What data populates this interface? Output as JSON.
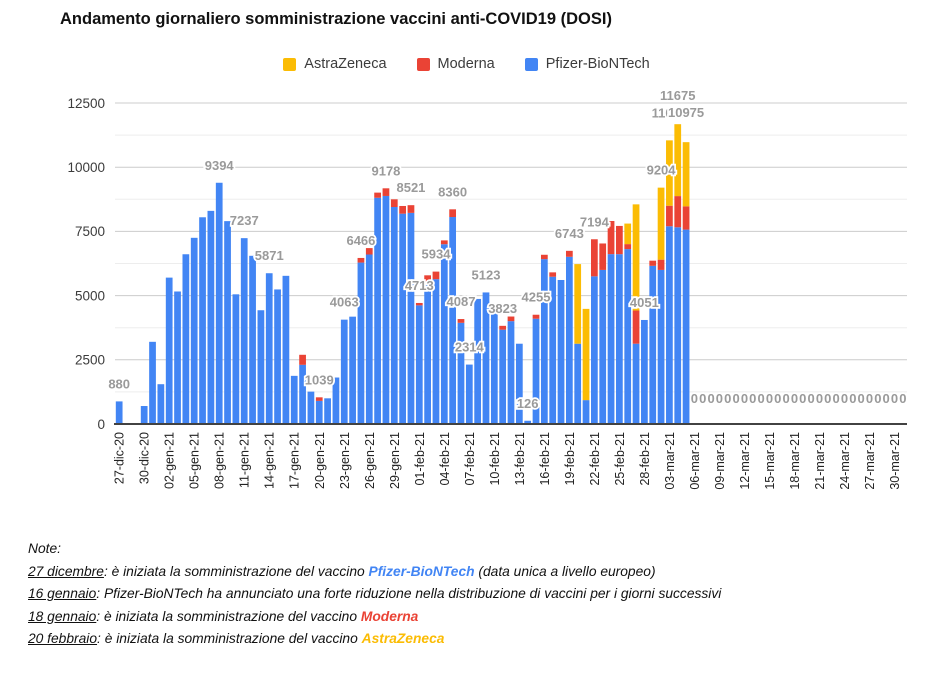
{
  "title": "Andamento giornaliero somministrazione vaccini anti-COVID19 (DOSI)",
  "legend": {
    "items": [
      {
        "label": "AstraZeneca",
        "color": "#fbbc04"
      },
      {
        "label": "Moderna",
        "color": "#ea4335"
      },
      {
        "label": "Pfizer-BioNTech",
        "color": "#4285f4"
      }
    ]
  },
  "chart_data": {
    "type": "bar",
    "stacked": true,
    "title": "Andamento giornaliero somministrazione vaccini anti-COVID19 (DOSI)",
    "xlabel": "",
    "ylabel": "",
    "ylim": [
      0,
      12500
    ],
    "yticks": [
      0,
      2500,
      5000,
      7500,
      10000,
      12500
    ],
    "minor_gridlines": [
      1250,
      3750,
      6250,
      8750,
      11250
    ],
    "grid": "on",
    "legend_position": "top",
    "x_tick_every_days": 3,
    "series_colors": {
      "pfizer": "#4285f4",
      "moderna": "#ea4335",
      "astrazeneca": "#fbbc04"
    },
    "series_names": {
      "p": "Pfizer-BioNTech",
      "m": "Moderna",
      "a": "AstraZeneca"
    },
    "annotation_note": "gray value labels with white halo; overlapping labels partially hidden",
    "days": [
      {
        "d": "27-dic-20",
        "p": 880,
        "l": "880"
      },
      {
        "d": "28-dic-20"
      },
      {
        "d": "29-dic-20"
      },
      {
        "d": "30-dic-20",
        "p": 700
      },
      {
        "d": "31-dic-20",
        "p": 3200
      },
      {
        "d": "01-gen-21",
        "p": 1550
      },
      {
        "d": "02-gen-21",
        "p": 5700
      },
      {
        "d": "03-gen-21",
        "p": 5160
      },
      {
        "d": "04-gen-21",
        "p": 6610
      },
      {
        "d": "05-gen-21",
        "p": 7250
      },
      {
        "d": "06-gen-21",
        "p": 8050
      },
      {
        "d": "07-gen-21",
        "p": 8300
      },
      {
        "d": "08-gen-21",
        "p": 9394,
        "l": "9394"
      },
      {
        "d": "09-gen-21",
        "p": 7900
      },
      {
        "d": "10-gen-21",
        "p": 5050
      },
      {
        "d": "11-gen-21",
        "p": 7237,
        "l": "7237"
      },
      {
        "d": "12-gen-21",
        "p": 6550
      },
      {
        "d": "13-gen-21",
        "p": 4430
      },
      {
        "d": "14-gen-21",
        "p": 5871,
        "l": "5871"
      },
      {
        "d": "15-gen-21",
        "p": 5240
      },
      {
        "d": "16-gen-21",
        "p": 5770
      },
      {
        "d": "17-gen-21",
        "p": 1875
      },
      {
        "d": "18-gen-21",
        "p": 2305,
        "m": 390
      },
      {
        "d": "19-gen-21",
        "p": 1260
      },
      {
        "d": "20-gen-21",
        "p": 900,
        "m": 139,
        "l": "1039"
      },
      {
        "d": "21-gen-21",
        "p": 1000
      },
      {
        "d": "22-gen-21",
        "p": 1810
      },
      {
        "d": "23-gen-21",
        "p": 4063,
        "l": "4063"
      },
      {
        "d": "24-gen-21",
        "p": 4180
      },
      {
        "d": "25-gen-21",
        "p": 6286,
        "m": 180,
        "l": "6466"
      },
      {
        "d": "26-gen-21",
        "p": 6600,
        "m": 250
      },
      {
        "d": "27-gen-21",
        "p": 8810,
        "m": 200
      },
      {
        "d": "28-gen-21",
        "p": 8880,
        "m": 298,
        "l": "9178"
      },
      {
        "d": "29-gen-21",
        "p": 8450,
        "m": 300
      },
      {
        "d": "30-gen-21",
        "p": 8190,
        "m": 300
      },
      {
        "d": "31-gen-21",
        "p": 8221,
        "m": 300,
        "l": "8521"
      },
      {
        "d": "01-feb-21",
        "p": 4620,
        "m": 93,
        "l": "4713"
      },
      {
        "d": "02-feb-21",
        "p": 5530,
        "m": 260
      },
      {
        "d": "03-feb-21",
        "p": 5640,
        "m": 294,
        "l": "5934"
      },
      {
        "d": "04-feb-21",
        "p": 7000,
        "m": 150
      },
      {
        "d": "05-feb-21",
        "p": 8060,
        "m": 300,
        "l": "8360"
      },
      {
        "d": "06-feb-21",
        "p": 3940,
        "m": 147,
        "l": "4087"
      },
      {
        "d": "07-feb-21",
        "p": 2314,
        "l": "2314"
      },
      {
        "d": "08-feb-21",
        "p": 4870
      },
      {
        "d": "09-feb-21",
        "p": 5123,
        "l": "5123"
      },
      {
        "d": "10-feb-21",
        "p": 4340,
        "m": 182
      },
      {
        "d": "11-feb-21",
        "p": 3673,
        "m": 150,
        "l": "3823"
      },
      {
        "d": "12-feb-21",
        "p": 4005,
        "m": 180
      },
      {
        "d": "13-feb-21",
        "p": 3126
      },
      {
        "d": "14-feb-21",
        "p": 126,
        "l": "126"
      },
      {
        "d": "15-feb-21",
        "p": 4100,
        "m": 155,
        "l": "4255"
      },
      {
        "d": "16-feb-21",
        "p": 6420,
        "m": 170
      },
      {
        "d": "17-feb-21",
        "p": 5735,
        "m": 170
      },
      {
        "d": "18-feb-21",
        "p": 5608
      },
      {
        "d": "19-feb-21",
        "p": 6511,
        "m": 232,
        "l": "6743"
      },
      {
        "d": "20-feb-21",
        "p": 3127,
        "a": 3100
      },
      {
        "d": "21-feb-21",
        "p": 930,
        "a": 3553
      },
      {
        "d": "22-feb-21",
        "p": 5750,
        "m": 1444,
        "l": "7194"
      },
      {
        "d": "23-feb-21",
        "p": 6000,
        "m": 1030
      },
      {
        "d": "24-feb-21",
        "p": 6615,
        "m": 1290
      },
      {
        "d": "25-feb-21",
        "p": 6613,
        "m": 1100
      },
      {
        "d": "26-feb-21",
        "p": 6810,
        "m": 195,
        "a": 800
      },
      {
        "d": "27-feb-21",
        "p": 3127,
        "m": 1292,
        "a": 4134
      },
      {
        "d": "28-feb-21",
        "p": 4051,
        "l": "4051"
      },
      {
        "d": "01-mar-21",
        "p": 6160,
        "m": 200
      },
      {
        "d": "02-mar-21",
        "p": 6000,
        "m": 400,
        "a": 2804,
        "l": "9204"
      },
      {
        "d": "03-mar-21",
        "p": 7700,
        "m": 800,
        "a": 2545,
        "l": "11045",
        "dy": -10
      },
      {
        "d": "04-mar-21",
        "p": 7660,
        "m": 1215,
        "a": 2800,
        "l": "11675",
        "dy": -11
      },
      {
        "d": "05-mar-21",
        "p": 7570,
        "m": 905,
        "a": 2500,
        "l": "10975",
        "dy": -12
      },
      {
        "d": "06-mar-21",
        "l": "0"
      },
      {
        "d": "07-mar-21",
        "l": "0"
      },
      {
        "d": "08-mar-21",
        "l": "0"
      },
      {
        "d": "09-mar-21",
        "l": "0"
      },
      {
        "d": "10-mar-21",
        "l": "0"
      },
      {
        "d": "11-mar-21",
        "l": "0"
      },
      {
        "d": "12-mar-21",
        "l": "0"
      },
      {
        "d": "13-mar-21",
        "l": "0"
      },
      {
        "d": "14-mar-21",
        "l": "0"
      },
      {
        "d": "15-mar-21",
        "l": "0"
      },
      {
        "d": "16-mar-21",
        "l": "0"
      },
      {
        "d": "17-mar-21",
        "l": "0"
      },
      {
        "d": "18-mar-21",
        "l": "0"
      },
      {
        "d": "19-mar-21",
        "l": "0"
      },
      {
        "d": "20-mar-21",
        "l": "0"
      },
      {
        "d": "21-mar-21",
        "l": "0"
      },
      {
        "d": "22-mar-21",
        "l": "0"
      },
      {
        "d": "23-mar-21",
        "l": "0"
      },
      {
        "d": "24-mar-21",
        "l": "0"
      },
      {
        "d": "25-mar-21",
        "l": "0"
      },
      {
        "d": "26-mar-21",
        "l": "0"
      },
      {
        "d": "27-mar-21",
        "l": "0"
      },
      {
        "d": "28-mar-21",
        "l": "0"
      },
      {
        "d": "29-mar-21",
        "l": "0"
      },
      {
        "d": "30-mar-21",
        "l": "0"
      },
      {
        "d": "31-mar-21",
        "l": "0"
      }
    ]
  },
  "notes": {
    "lines": [
      [
        {
          "t": "Note:"
        }
      ],
      [
        {
          "t": "27 dicembre",
          "s": "u"
        },
        {
          "t": ": è iniziata la somministrazione del vaccino "
        },
        {
          "t": "Pfizer-BioNTech",
          "s": "b",
          "c": "#4285f4"
        },
        {
          "t": " (data unica a livello europeo)"
        }
      ],
      [
        {
          "t": "16 gennaio",
          "s": "u"
        },
        {
          "t": ": Pfizer-BioNTech ha annunciato una forte riduzione nella distribuzione di vaccini per i giorni successivi"
        }
      ],
      [
        {
          "t": "18 gennaio",
          "s": "u"
        },
        {
          "t": ": è iniziata la somministrazione del vaccino "
        },
        {
          "t": "Moderna",
          "s": "b",
          "c": "#ea4335"
        }
      ],
      [
        {
          "t": "20 febbraio",
          "s": "u"
        },
        {
          "t": ": è iniziata la somministrazione del vaccino "
        },
        {
          "t": "AstraZeneca",
          "s": "b",
          "c": "#fbbc04"
        }
      ]
    ]
  }
}
